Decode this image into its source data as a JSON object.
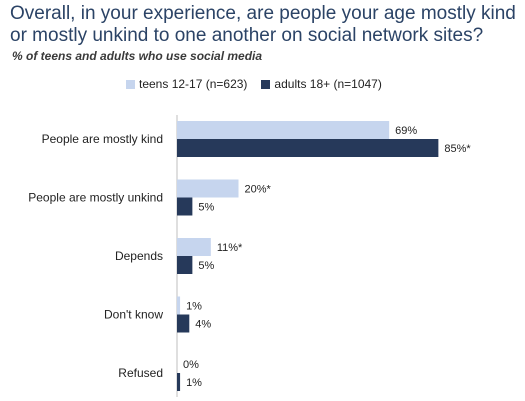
{
  "title": "Overall, in your experience, are people your age mostly kind\nor mostly unkind to one another on social network sites?",
  "subtitle": "% of teens and adults who use social media",
  "colors": {
    "teens": "#c6d5ee",
    "adults": "#26395a"
  },
  "chart_data": {
    "type": "bar",
    "orientation": "horizontal",
    "categories": [
      "People are mostly kind",
      "People are mostly unkind",
      "Depends",
      "Don't know",
      "Refused"
    ],
    "series": [
      {
        "name": "teens 12-17 (n=623)",
        "values": [
          69,
          20,
          11,
          1,
          0
        ],
        "labels": [
          "69%",
          "20%*",
          "11%*",
          "1%",
          "0%"
        ]
      },
      {
        "name": "adults 18+ (n=1047)",
        "values": [
          85,
          5,
          5,
          4,
          1
        ],
        "labels": [
          "85%*",
          "5%",
          "5%",
          "4%",
          "1%"
        ]
      }
    ],
    "xlim": [
      0,
      100
    ],
    "legend": "top"
  }
}
